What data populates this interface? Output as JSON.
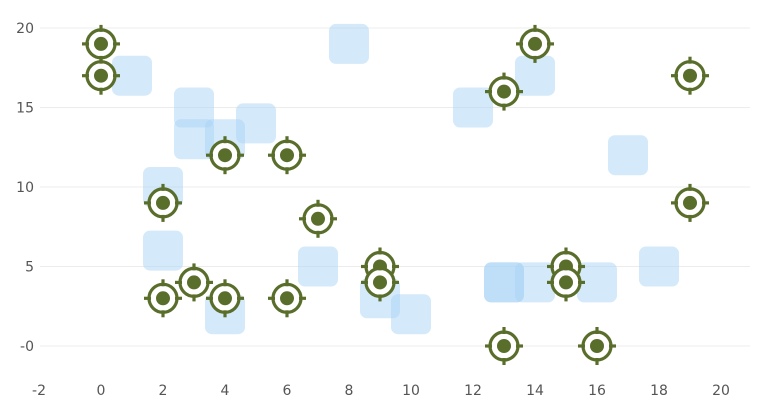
{
  "chart_data": {
    "type": "scatter",
    "title": "",
    "xlabel": "",
    "ylabel": "",
    "xlim": [
      -2,
      21
    ],
    "ylim": [
      -2.5,
      21
    ],
    "x_ticks": [
      -2,
      0,
      2,
      4,
      6,
      8,
      10,
      12,
      14,
      16,
      18,
      20
    ],
    "x_tick_labels": [
      "-2",
      "0",
      "2",
      "4",
      "6",
      "8",
      "10",
      "12",
      "14",
      "16",
      "18",
      "20"
    ],
    "y_ticks": [
      0,
      5,
      10,
      15,
      20
    ],
    "y_tick_labels": [
      "-0",
      "5",
      "10",
      "15",
      "20"
    ],
    "grid": {
      "x": false,
      "y": true
    },
    "legend": "none",
    "series": [
      {
        "marker": "rounded-square",
        "color": "#a9d4f5",
        "x": [
          1,
          3,
          3,
          4,
          5,
          2,
          2,
          4,
          7,
          8,
          9,
          10,
          12,
          13,
          13,
          14,
          14,
          16,
          17,
          18
        ],
        "y": [
          17,
          15,
          13,
          13,
          14,
          10,
          6,
          2,
          5,
          19,
          3,
          2,
          15,
          4,
          4,
          4,
          17,
          4,
          12,
          5
        ]
      },
      {
        "marker": "target",
        "color": "#5a6e2b",
        "x": [
          0,
          0,
          2,
          2,
          3,
          4,
          4,
          6,
          6,
          7,
          9,
          9,
          13,
          13,
          14,
          15,
          15,
          16,
          19,
          19
        ],
        "y": [
          19,
          17,
          9,
          3,
          4,
          12,
          3,
          12,
          3,
          8,
          5,
          4,
          16,
          0,
          19,
          5,
          4,
          0,
          17,
          9
        ]
      }
    ]
  }
}
